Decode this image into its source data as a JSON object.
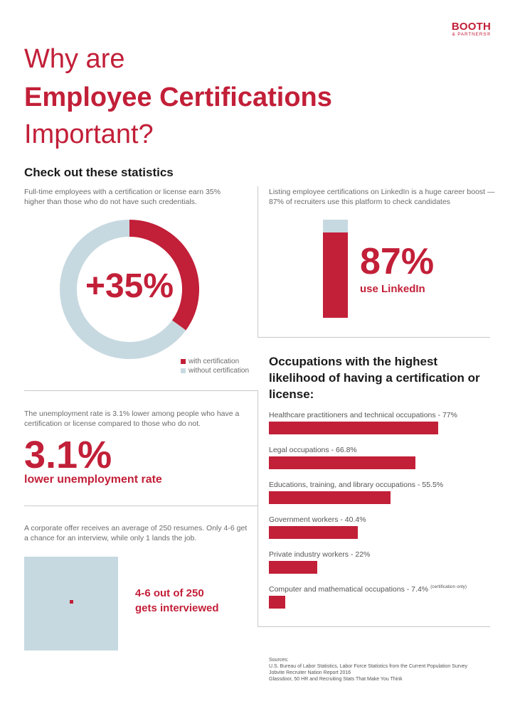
{
  "brand": {
    "line1": "BOOTH",
    "line2": "& PARTNERS®"
  },
  "title": {
    "line1": "Why are",
    "line2": "Employee Certifications",
    "line3": "Important?"
  },
  "subheading": "Check out these statistics",
  "earnings": {
    "description": "Full-time employees with a certification or license earn 35% higher than those who do not have such credentials.",
    "value_label": "+35%",
    "legend": [
      {
        "label": "with certification",
        "color": "#c21f38"
      },
      {
        "label": "without certification",
        "color": "#c7d9e0"
      }
    ]
  },
  "linkedin": {
    "description": "Listing employee certifications on LinkedIn is a huge career boost — 87% of recruiters use this platform to check candidates",
    "value_label": "87%",
    "label": "use LinkedIn",
    "percent": 87
  },
  "unemployment": {
    "description": "The unemployment rate is 3.1% lower among people who have a certification or license compared to those who do not.",
    "value_label": "3.1%",
    "label": "lower unemployment rate"
  },
  "resumes": {
    "description": "A corporate offer receives an average of 250 resumes. Only 4-6 get a chance for an interview, while only 1 lands the job.",
    "line1": "4-6 out of 250",
    "line2": "gets interviewed"
  },
  "occupations": {
    "title": "Occupations with the highest likelihood of having a certification or license:",
    "note": "(certification only)"
  },
  "chart_data": [
    {
      "type": "pie",
      "categories": [
        "with certification",
        "without certification"
      ],
      "values": [
        35,
        65
      ],
      "colors": [
        "#c21f38",
        "#c7d9e0"
      ],
      "center_label": "+35%"
    },
    {
      "type": "bar",
      "categories": [
        "use LinkedIn"
      ],
      "values": [
        87
      ],
      "ylim": [
        0,
        100
      ]
    },
    {
      "type": "bar",
      "orientation": "horizontal",
      "categories": [
        "Healthcare practitioners and technical occupations - 77%",
        "Legal occupations -  66.8%",
        "Educations, training, and library occupations - 55.5%",
        "Government workers - 40.4%",
        "Private industry workers - 22%",
        "Computer and mathematical occupations - 7.4%"
      ],
      "values": [
        77,
        66.8,
        55.5,
        40.4,
        22,
        7.4
      ],
      "xlim": [
        0,
        100
      ]
    }
  ],
  "sources": {
    "heading": "Sources:",
    "items": [
      "U.S. Bureau of Labor Statistics, Labor Force Statistics from the Current Population Survey",
      "Jobvite Recruiter Nation Report 2016",
      "Glassdoor, 50 HR and Recruiting Stats That Make You Think"
    ]
  }
}
